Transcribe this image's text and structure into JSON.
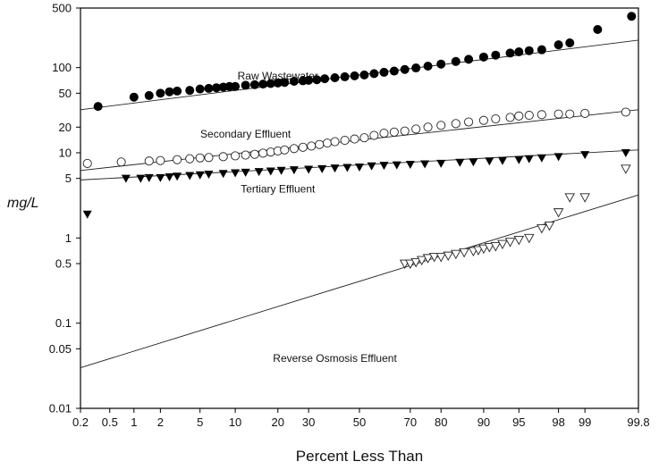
{
  "chart_data": {
    "type": "scatter",
    "title": "",
    "xlabel": "Percent Less Than",
    "ylabel": "mg/L",
    "x_scale": "probability",
    "y_scale": "log",
    "xlim": [
      0.2,
      99.8
    ],
    "ylim": [
      0.01,
      500
    ],
    "x_ticks": [
      0.2,
      0.5,
      1,
      2,
      5,
      10,
      20,
      30,
      50,
      70,
      80,
      90,
      95,
      98,
      99,
      99.8
    ],
    "x_tick_labels": [
      "0.2",
      "0.5",
      "1",
      "2",
      "5",
      "10",
      "20",
      "30",
      "50",
      "70",
      "80",
      "90",
      "95",
      "98",
      "99",
      "99.8"
    ],
    "y_ticks": [
      0.01,
      0.05,
      0.1,
      0.5,
      1,
      5,
      10,
      20,
      50,
      100,
      500
    ],
    "y_tick_labels": [
      "0.01",
      "0.05",
      "0.1",
      "0.5",
      "1",
      "5",
      "10",
      "20",
      "50",
      "100",
      "500"
    ],
    "grid": false,
    "legend": "none",
    "series": [
      {
        "name": "Raw Wastewater",
        "marker": "filled-circle",
        "x": [
          0.35,
          1.0,
          1.5,
          2.0,
          2.5,
          3.0,
          4.0,
          5.0,
          6.0,
          7.0,
          8.0,
          9.0,
          10,
          12,
          14,
          16,
          18,
          20,
          22,
          25,
          28,
          30,
          33,
          36,
          40,
          44,
          48,
          52,
          56,
          60,
          64,
          68,
          72,
          76,
          80,
          84,
          87,
          90,
          92,
          94,
          95,
          96,
          97,
          98,
          98.5,
          99.3,
          99.75
        ],
        "y": [
          35,
          45,
          47,
          50,
          52,
          53,
          54,
          56,
          57,
          58,
          59,
          60,
          60,
          62,
          63,
          64,
          65,
          66,
          67,
          69,
          70,
          71,
          72,
          74,
          76,
          78,
          80,
          82,
          85,
          88,
          91,
          95,
          99,
          104,
          110,
          118,
          125,
          133,
          140,
          148,
          153,
          158,
          162,
          185,
          195,
          280,
          400
        ]
      },
      {
        "name": "Secondary Effluent",
        "marker": "open-circle",
        "x": [
          0.25,
          0.7,
          1.5,
          2.0,
          3.0,
          4.0,
          5.0,
          6.0,
          8.0,
          10,
          12,
          14,
          16,
          18,
          20,
          22,
          25,
          28,
          31,
          34,
          37,
          40,
          44,
          48,
          52,
          56,
          60,
          64,
          68,
          72,
          76,
          80,
          84,
          87,
          90,
          92,
          94,
          95,
          96,
          97,
          98,
          98.5,
          99,
          99.7
        ],
        "y": [
          7.5,
          7.8,
          8.0,
          8.1,
          8.3,
          8.5,
          8.7,
          8.8,
          9.0,
          9.2,
          9.4,
          9.6,
          9.9,
          10.2,
          10.5,
          10.8,
          11.2,
          11.6,
          12.0,
          12.5,
          13.0,
          13.5,
          14.0,
          14.5,
          15.0,
          16.0,
          17.0,
          17.5,
          18.0,
          19.0,
          20.0,
          21.0,
          22.0,
          23.0,
          24.0,
          25.0,
          26.0,
          27.0,
          27.5,
          28.0,
          28.5,
          28.5,
          29.0,
          30.0
        ]
      },
      {
        "name": "Tertiary Effluent",
        "marker": "filled-triangle-down",
        "x": [
          0.25,
          0.8,
          1.2,
          1.5,
          2.0,
          2.5,
          3.0,
          4.0,
          5.0,
          6.0,
          8.0,
          10,
          12,
          15,
          18,
          21,
          25,
          30,
          35,
          40,
          45,
          50,
          55,
          60,
          65,
          70,
          75,
          80,
          85,
          88,
          91,
          93,
          95,
          96,
          97,
          98,
          99,
          99.7
        ],
        "y": [
          1.9,
          5.0,
          5.0,
          5.1,
          5.1,
          5.2,
          5.3,
          5.4,
          5.5,
          5.6,
          5.7,
          5.8,
          5.9,
          6.0,
          6.1,
          6.2,
          6.3,
          6.4,
          6.5,
          6.6,
          6.7,
          6.8,
          7.0,
          7.1,
          7.2,
          7.3,
          7.4,
          7.5,
          7.7,
          7.8,
          8.0,
          8.1,
          8.3,
          8.5,
          8.7,
          9.0,
          9.5,
          10.0
        ]
      },
      {
        "name": "Reverse Osmosis Effluent",
        "marker": "open-triangle-down",
        "x": [
          68,
          70,
          72,
          74,
          76,
          78,
          80,
          82,
          84,
          86,
          88,
          89,
          90,
          91,
          92,
          93,
          94,
          95,
          96,
          97,
          97.5,
          98,
          98.5,
          99,
          99.7
        ],
        "y": [
          0.5,
          0.5,
          0.52,
          0.55,
          0.58,
          0.6,
          0.6,
          0.62,
          0.65,
          0.68,
          0.7,
          0.72,
          0.75,
          0.78,
          0.8,
          0.85,
          0.9,
          0.95,
          1.0,
          1.3,
          1.4,
          2.0,
          3.0,
          3.0,
          6.5
        ]
      }
    ],
    "fit_lines": [
      {
        "series": "Raw Wastewater",
        "x": [
          0.2,
          99.8
        ],
        "y": [
          32,
          210
        ]
      },
      {
        "series": "Secondary Effluent",
        "x": [
          0.2,
          99.8
        ],
        "y": [
          6.2,
          32
        ]
      },
      {
        "series": "Tertiary Effluent",
        "x": [
          0.2,
          99.8
        ],
        "y": [
          4.8,
          10.8
        ]
      },
      {
        "series": "Reverse Osmosis Effluent",
        "x": [
          0.2,
          99.8
        ],
        "y": [
          0.03,
          3.2
        ]
      }
    ],
    "series_labels": [
      {
        "text": "Raw Wastewater",
        "x": 20,
        "y": 72
      },
      {
        "text": "Secondary Effluent",
        "x": 12,
        "y": 15
      },
      {
        "text": "Tertiary Effluent",
        "x": 20,
        "y": 3.4
      },
      {
        "text": "Reverse Osmosis Effluent",
        "x": 40,
        "y": 0.035
      }
    ]
  }
}
